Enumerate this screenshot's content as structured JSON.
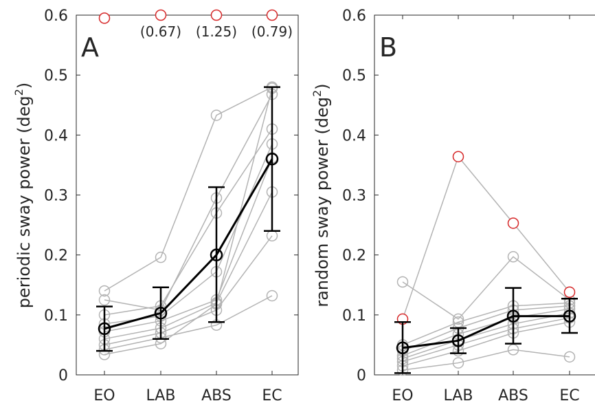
{
  "chart_data": [
    {
      "type": "line",
      "panel_label": "A",
      "ylabel": "periodic sway power (deg",
      "ylabel_sup": "2",
      "ylabel_close": ")",
      "categories": [
        "EO",
        "LAB",
        "ABS",
        "EC"
      ],
      "ylim": [
        0,
        0.6
      ],
      "yticks": [
        "0",
        "0.1",
        "0.2",
        "0.3",
        "0.4",
        "0.5",
        "0.6"
      ],
      "yticks_values": [
        0,
        0.1,
        0.2,
        0.3,
        0.4,
        0.5,
        0.6
      ],
      "subjects": [
        [
          0.14,
          0.196,
          0.433,
          0.48
        ],
        [
          0.125,
          0.108,
          0.295,
          0.468
        ],
        [
          0.1,
          0.115,
          0.27,
          0.41
        ],
        [
          0.085,
          0.098,
          0.172,
          0.385
        ],
        [
          0.072,
          0.09,
          0.125,
          0.362
        ],
        [
          0.06,
          0.078,
          0.12,
          0.305
        ],
        [
          0.05,
          0.07,
          0.108,
          0.232
        ],
        [
          0.042,
          0.062,
          0.083,
          0.132
        ],
        [
          0.034,
          0.052,
          0.118,
          0.478
        ]
      ],
      "outliers": [
        {
          "x": "EO",
          "y": 0.595,
          "label": ""
        },
        {
          "x": "LAB",
          "y": 0.6,
          "label": "(0.67)"
        },
        {
          "x": "ABS",
          "y": 0.6,
          "label": "(1.25)"
        },
        {
          "x": "EC",
          "y": 0.6,
          "label": "(0.79)"
        }
      ],
      "mean": [
        0.077,
        0.103,
        0.2,
        0.36
      ],
      "error_low": [
        0.04,
        0.06,
        0.088,
        0.24
      ],
      "error_high": [
        0.114,
        0.146,
        0.313,
        0.48
      ]
    },
    {
      "type": "line",
      "panel_label": "B",
      "ylabel": "random sway power (deg",
      "ylabel_sup": "2",
      "ylabel_close": ")",
      "categories": [
        "EO",
        "LAB",
        "ABS",
        "EC"
      ],
      "ylim": [
        0,
        0.6
      ],
      "yticks": [
        "0",
        "0.1",
        "0.2",
        "0.3",
        "0.4",
        "0.5",
        "0.6"
      ],
      "yticks_values": [
        0,
        0.1,
        0.2,
        0.3,
        0.4,
        0.5,
        0.6
      ],
      "subjects": [
        [
          0.155,
          0.093,
          0.197,
          0.125
        ],
        [
          0.05,
          0.088,
          0.115,
          0.12
        ],
        [
          0.04,
          0.078,
          0.108,
          0.115
        ],
        [
          0.032,
          0.068,
          0.095,
          0.11
        ],
        [
          0.027,
          0.058,
          0.085,
          0.103
        ],
        [
          0.022,
          0.05,
          0.077,
          0.095
        ],
        [
          0.015,
          0.04,
          0.07,
          0.088
        ],
        [
          0.008,
          0.02,
          0.042,
          0.03
        ]
      ],
      "highlighted_subject": [
        0.093,
        0.364,
        0.253,
        0.138
      ],
      "mean": [
        0.045,
        0.057,
        0.098,
        0.098
      ],
      "error_low": [
        0.003,
        0.036,
        0.052,
        0.07
      ],
      "error_high": [
        0.088,
        0.078,
        0.145,
        0.127
      ]
    }
  ]
}
